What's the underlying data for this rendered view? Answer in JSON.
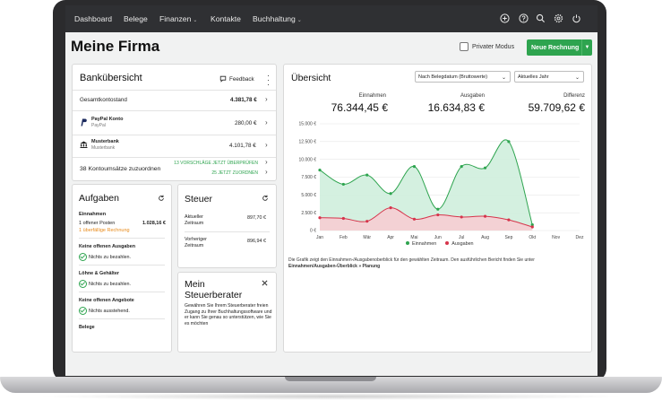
{
  "nav": {
    "items": [
      "Dashboard",
      "Belege",
      "Finanzen",
      "Kontakte",
      "Buchhaltung"
    ]
  },
  "icons": [
    "plus-circle-icon",
    "help-icon",
    "search-icon",
    "settings-icon",
    "power-icon"
  ],
  "page": {
    "title": "Meine Firma",
    "private_mode": "Privater Modus",
    "new_invoice": "Neue Rechnung"
  },
  "bank": {
    "title": "Bankübersicht",
    "feedback": "Feedback",
    "total_label": "Gesamtkontostand",
    "total_value": "4.381,78 €",
    "accounts": [
      {
        "name": "PayPal Konto",
        "sub": "PayPal",
        "value": "280,00 €"
      },
      {
        "name": "Musterbank",
        "sub": "Musterbank",
        "value": "4.101,78 €"
      }
    ],
    "unassigned": "38 Kontoumsätze zuzuordnen",
    "suggestions": "13 VORSCHLÄGE JETZT ÜBERPRÜFEN",
    "assign_now": "25 JETZT ZUORDNEN"
  },
  "tasks": {
    "title": "Aufgaben",
    "income_heading": "Einnahmen",
    "open_items": "1 offener Posten",
    "open_value": "1.028,16 €",
    "overdue": "1 überfällige Rechnung",
    "expenses_heading": "Keine offenen Ausgaben",
    "expenses_status": "Nichts zu bezahlen.",
    "wages_heading": "Löhne & Gehälter",
    "wages_status": "Nichts zu bezahlen.",
    "offers_heading": "Keine offenen Angebote",
    "offers_status": "Nichts ausstehend.",
    "receipts_heading": "Belege"
  },
  "tax": {
    "title": "Steuer",
    "current_label_1": "Aktueller",
    "current_label_2": "Zeitraum",
    "current_value": "897,70 €",
    "previous_label_1": "Vorheriger",
    "previous_label_2": "Zeitraum",
    "previous_value": "896,94 €"
  },
  "advisor": {
    "title_1": "Mein",
    "title_2": "Steuerberater",
    "text": "Gewähren Sie Ihrem Steuerberater freien Zugang zu Ihrer Buchhaltungssoftware und er kann Sie genau so unterstützen, wie Sie es möchten"
  },
  "overview": {
    "title": "Übersicht",
    "select_basis": "Nach Belegdatum (Bruttowerte)",
    "select_period": "Aktuelles Jahr",
    "income_label": "Einnahmen",
    "income_value": "76.344,45 €",
    "expense_label": "Ausgaben",
    "expense_value": "16.634,83 €",
    "diff_label": "Differenz",
    "diff_value": "59.709,62 €",
    "legend_income": "Einnahmen",
    "legend_expense": "Ausgaben",
    "caption": "Die Grafik zeigt den Einnahmen-/Ausgabenoberblick für den gewählten Zeitraum. Den ausführlichen Bericht finden Sie unter",
    "caption_link": "Einnahmen/Ausgaben-Überblick » Planung"
  },
  "colors": {
    "income": "#2ea44f",
    "income_fill": "#cfeedd",
    "expense": "#d6344b",
    "expense_fill": "#f6cdd3",
    "nav_bg": "#2f3033"
  },
  "chart_data": {
    "type": "area",
    "categories": [
      "Jan",
      "Feb",
      "Mär",
      "Apr",
      "Mai",
      "Jun",
      "Jul",
      "Aug",
      "Sep",
      "Okt",
      "Nov",
      "Dez"
    ],
    "series": [
      {
        "name": "Einnahmen",
        "values": [
          8500,
          6500,
          7800,
          5200,
          9000,
          3000,
          9000,
          8800,
          12500,
          800,
          null,
          null
        ]
      },
      {
        "name": "Ausgaben",
        "values": [
          1800,
          1700,
          1300,
          3200,
          1600,
          2200,
          1900,
          2000,
          1500,
          500,
          null,
          null
        ]
      }
    ],
    "yticks": [
      "0 €",
      "2.500 €",
      "5.000 €",
      "7.500 €",
      "10.000 €",
      "12.500 €",
      "15.000 €"
    ],
    "ylim": [
      0,
      15000
    ],
    "grid": true,
    "legend": "bottom-center"
  }
}
